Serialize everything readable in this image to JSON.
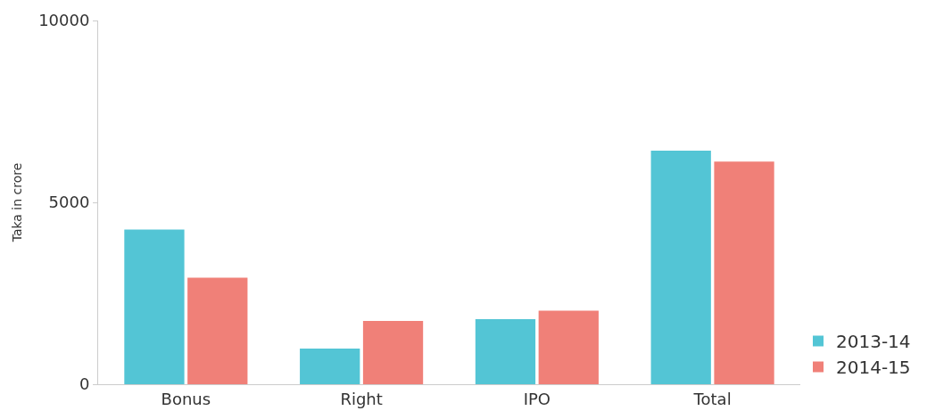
{
  "chart_data": {
    "type": "bar",
    "ylabel": "Taka in crore",
    "categories": [
      "Bonus",
      "Right",
      "IPO",
      "Total"
    ],
    "series": [
      {
        "name": "2013-14",
        "color": "#53c5d5",
        "values": [
          4250,
          980,
          1790,
          6420
        ]
      },
      {
        "name": "2014-15",
        "color": "#f08078",
        "values": [
          2930,
          1740,
          2020,
          6120
        ]
      }
    ],
    "ylim": [
      0,
      10000
    ],
    "yticks": [
      0,
      5000,
      10000
    ],
    "legend": "bottom right"
  }
}
